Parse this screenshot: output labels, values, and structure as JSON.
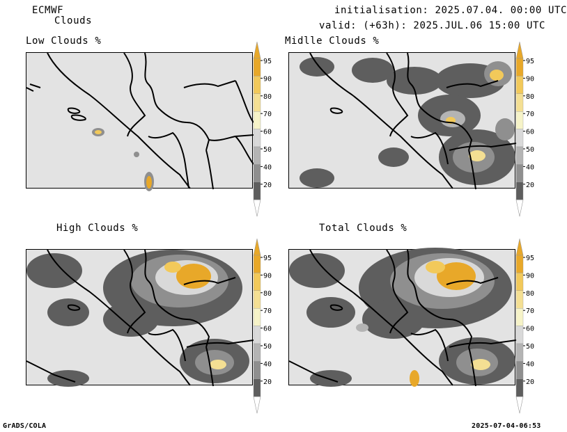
{
  "header": {
    "source": "ECMWF",
    "product": "Clouds",
    "init": "initialisation: 2025.07.04. 00:00 UTC",
    "valid": "valid: (+63h): 2025.JUL.06 15:00 UTC"
  },
  "panels": [
    {
      "title": "Low Clouds %"
    },
    {
      "title": "Midlle Clouds %"
    },
    {
      "title": "High Clouds %"
    },
    {
      "title": "Total Clouds %"
    }
  ],
  "legend": {
    "levels": [
      "95",
      "90",
      "80",
      "70",
      "60",
      "50",
      "40",
      "20"
    ],
    "colors": {
      "95": "#e8a829",
      "90": "#f2c95a",
      "80": "#f4df93",
      "70": "#f6f3c8",
      "60": "#d9d9d9",
      "50": "#b4b4b4",
      "40": "#8f8f8f",
      "20": "#5e5e5e"
    }
  },
  "footer": {
    "left": "GrADS/COLA",
    "right": "2025-07-04-06:53"
  }
}
